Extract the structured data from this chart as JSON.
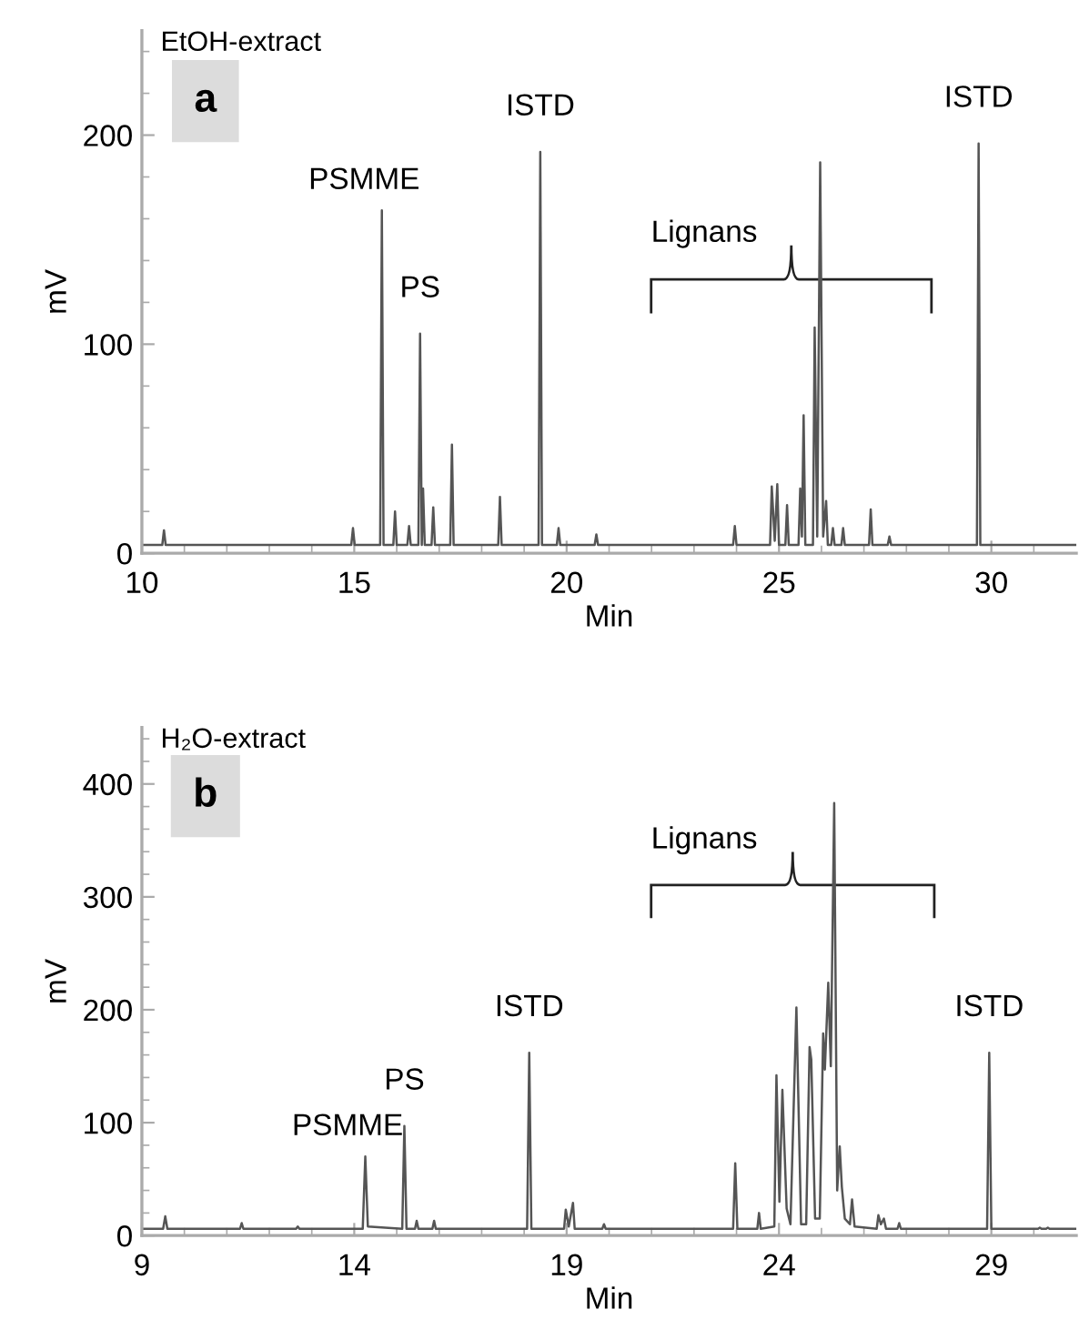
{
  "chart_data": [
    {
      "type": "line",
      "title": "EtOH-extract",
      "subtitle": "a",
      "xlabel": "Min",
      "ylabel": "mV",
      "xlim": [
        10,
        32
      ],
      "ylim": [
        0,
        250
      ],
      "xticks": [
        10,
        15,
        20,
        25,
        30,
        {
          "value": 11,
          "label": null
        },
        {
          "value": 12,
          "label": null
        },
        {
          "value": 13,
          "label": null
        },
        {
          "value": 14,
          "label": null
        },
        {
          "value": 16,
          "label": null
        },
        {
          "value": 17,
          "label": null
        },
        {
          "value": 18,
          "label": null
        },
        {
          "value": 19,
          "label": null
        },
        {
          "value": 21,
          "label": null
        },
        {
          "value": 22,
          "label": null
        },
        {
          "value": 23,
          "label": null
        },
        {
          "value": 24,
          "label": null
        },
        {
          "value": 26,
          "label": null
        },
        {
          "value": 27,
          "label": null
        },
        {
          "value": 28,
          "label": null
        },
        {
          "value": 29,
          "label": null
        },
        {
          "value": 31,
          "label": null
        }
      ],
      "yticks": [
        0,
        100,
        200,
        {
          "value": 20,
          "label": null
        },
        {
          "value": 40,
          "label": null
        },
        {
          "value": 60,
          "label": null
        },
        {
          "value": 80,
          "label": null
        },
        {
          "value": 120,
          "label": null
        },
        {
          "value": 140,
          "label": null
        },
        {
          "value": 160,
          "label": null
        },
        {
          "value": 180,
          "label": null
        },
        {
          "value": 220,
          "label": null
        },
        {
          "value": 240,
          "label": null
        }
      ],
      "grid": false,
      "legend": false,
      "marker": "none",
      "line_style": "solid",
      "series": [
        {
          "color": "#555555",
          "x": [
            10,
            10.48,
            10.52,
            10.56,
            14.93,
            14.97,
            15.01,
            15.61,
            15.65,
            15.69,
            15.92,
            15.96,
            16.0,
            16.25,
            16.29,
            16.33,
            16.51,
            16.55,
            16.59,
            16.62,
            16.66,
            16.82,
            16.86,
            16.9,
            17.26,
            17.3,
            17.34,
            18.39,
            18.43,
            18.47,
            19.34,
            19.38,
            19.42,
            19.77,
            19.81,
            19.85,
            20.66,
            20.7,
            20.74,
            23.92,
            23.96,
            24.0,
            24.79,
            24.83,
            24.9,
            24.96,
            25.0,
            25.15,
            25.19,
            25.23,
            25.46,
            25.5,
            25.54,
            25.58,
            25.62,
            25.8,
            25.84,
            25.9,
            25.97,
            26.04,
            26.11,
            26.15,
            26.23,
            26.27,
            26.31,
            26.47,
            26.51,
            26.55,
            27.12,
            27.16,
            27.2,
            27.56,
            27.6,
            27.64,
            29.66,
            29.7,
            29.74,
            32
          ],
          "values": [
            4,
            4,
            11,
            4,
            4,
            12,
            4,
            4,
            164,
            4,
            4,
            20,
            4,
            4,
            13,
            4,
            4,
            105,
            4,
            31,
            4,
            4,
            22,
            4,
            4,
            52,
            4,
            4,
            27,
            4,
            4,
            192,
            4,
            4,
            12,
            4,
            4,
            9,
            4,
            4,
            13,
            4,
            4,
            32,
            6,
            33,
            4,
            4,
            23,
            4,
            4,
            31,
            8,
            66,
            4,
            4,
            108,
            8,
            187,
            8,
            25,
            4,
            4,
            12,
            4,
            4,
            12,
            4,
            4,
            21,
            4,
            4,
            8,
            4,
            4,
            196,
            4,
            4
          ]
        }
      ],
      "annotations": [
        {
          "text": "PSMME",
          "x": 15.65,
          "y": 164
        },
        {
          "text": "PS",
          "x": 16.55,
          "y": 105
        },
        {
          "text": "ISTD",
          "x": 19.38,
          "y": 192
        },
        {
          "text": "ISTD",
          "x": 29.7,
          "y": 196
        },
        "Lignans"
      ]
    },
    {
      "type": "line",
      "title": "H₂O-extract",
      "subtitle": "b",
      "xlabel": "Min",
      "ylabel": "mV",
      "xlim": [
        9,
        31
      ],
      "ylim": [
        0,
        450
      ],
      "xticks": [
        9,
        14,
        19,
        24,
        29,
        {
          "value": 10,
          "label": null
        },
        {
          "value": 11,
          "label": null
        },
        {
          "value": 12,
          "label": null
        },
        {
          "value": 13,
          "label": null
        },
        {
          "value": 15,
          "label": null
        },
        {
          "value": 16,
          "label": null
        },
        {
          "value": 17,
          "label": null
        },
        {
          "value": 18,
          "label": null
        },
        {
          "value": 20,
          "label": null
        },
        {
          "value": 21,
          "label": null
        },
        {
          "value": 22,
          "label": null
        },
        {
          "value": 23,
          "label": null
        },
        {
          "value": 25,
          "label": null
        },
        {
          "value": 26,
          "label": null
        },
        {
          "value": 27,
          "label": null
        },
        {
          "value": 28,
          "label": null
        },
        {
          "value": 30,
          "label": null
        }
      ],
      "yticks": [
        0,
        100,
        200,
        300,
        400,
        {
          "value": 20,
          "label": null
        },
        {
          "value": 40,
          "label": null
        },
        {
          "value": 60,
          "label": null
        },
        {
          "value": 80,
          "label": null
        },
        {
          "value": 120,
          "label": null
        },
        {
          "value": 140,
          "label": null
        },
        {
          "value": 160,
          "label": null
        },
        {
          "value": 180,
          "label": null
        },
        {
          "value": 220,
          "label": null
        },
        {
          "value": 240,
          "label": null
        },
        {
          "value": 260,
          "label": null
        },
        {
          "value": 280,
          "label": null
        },
        {
          "value": 320,
          "label": null
        },
        {
          "value": 340,
          "label": null
        },
        {
          "value": 360,
          "label": null
        },
        {
          "value": 380,
          "label": null
        },
        {
          "value": 420,
          "label": null
        },
        {
          "value": 440,
          "label": null
        }
      ],
      "grid": false,
      "legend": false,
      "marker": "none",
      "line_style": "solid",
      "series": [
        {
          "color": "#555555",
          "x": [
            9,
            9.5,
            9.55,
            9.6,
            11.31,
            11.35,
            11.39,
            12.63,
            12.67,
            12.71,
            14.2,
            14.26,
            14.32,
            15.13,
            15.18,
            15.23,
            15.43,
            15.47,
            15.51,
            15.84,
            15.88,
            15.92,
            18.07,
            18.12,
            18.17,
            18.94,
            18.98,
            19.05,
            19.15,
            19.19,
            19.84,
            19.88,
            19.92,
            22.92,
            22.97,
            23.02,
            23.49,
            23.53,
            23.57,
            23.89,
            23.94,
            24.01,
            24.08,
            24.18,
            24.27,
            24.41,
            24.52,
            24.64,
            24.72,
            24.76,
            24.85,
            24.96,
            25.04,
            25.08,
            25.16,
            25.22,
            25.3,
            25.37,
            25.43,
            25.48,
            25.55,
            25.67,
            25.72,
            25.78,
            26.3,
            26.34,
            26.4,
            26.47,
            26.52,
            26.79,
            26.83,
            26.87,
            28.9,
            28.95,
            29.0,
            30.1,
            30.14,
            30.18,
            30.29,
            30.33,
            30.37,
            31
          ],
          "values": [
            6,
            6,
            17,
            6,
            6,
            11,
            6,
            6,
            8,
            6,
            6,
            70,
            8,
            6,
            97,
            6,
            6,
            13,
            6,
            6,
            13,
            6,
            6,
            162,
            6,
            6,
            23,
            8,
            29,
            6,
            6,
            10,
            6,
            6,
            64,
            6,
            6,
            20,
            6,
            8,
            142,
            30,
            129,
            24,
            10,
            202,
            10,
            10,
            167,
            156,
            15,
            15,
            179,
            147,
            224,
            150,
            383,
            40,
            79,
            43,
            15,
            10,
            32,
            8,
            6,
            18,
            10,
            15,
            6,
            6,
            11,
            6,
            6,
            162,
            6,
            6,
            7,
            6,
            6,
            7,
            6,
            6
          ]
        }
      ],
      "annotations": [
        {
          "text": "PSMME",
          "x": 14.26,
          "y": 70
        },
        {
          "text": "PS",
          "x": 15.18,
          "y": 97
        },
        {
          "text": "ISTD",
          "x": 18.12,
          "y": 162
        },
        {
          "text": "ISTD",
          "x": 28.95,
          "y": 162
        },
        "Lignans"
      ]
    }
  ]
}
